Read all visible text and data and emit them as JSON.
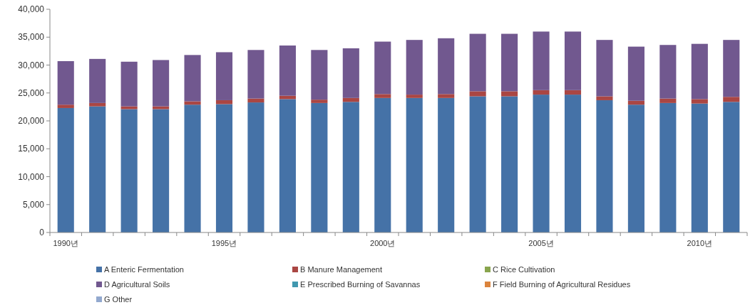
{
  "chart_data": {
    "type": "bar",
    "stacked": true,
    "categories": [
      "1990년",
      null,
      null,
      null,
      null,
      "1995년",
      null,
      null,
      null,
      null,
      "2000년",
      null,
      null,
      null,
      null,
      "2005년",
      null,
      null,
      null,
      null,
      "2010년",
      null
    ],
    "series": [
      {
        "name": "A Enteric Fermentation",
        "color": "#4572a7",
        "values": [
          22300,
          22600,
          22100,
          22100,
          22900,
          23000,
          23300,
          23900,
          23200,
          23400,
          24100,
          24100,
          24100,
          24400,
          24400,
          24700,
          24700,
          23700,
          22900,
          23200,
          23100,
          23400
        ]
      },
      {
        "name": "B Manure Management",
        "color": "#aa4643",
        "values": [
          600,
          600,
          500,
          500,
          600,
          700,
          700,
          600,
          600,
          700,
          700,
          600,
          700,
          900,
          900,
          800,
          800,
          700,
          700,
          800,
          800,
          900
        ]
      },
      {
        "name": "C Rice Cultivation",
        "color": "#89a54e",
        "values": [
          0,
          0,
          0,
          0,
          0,
          0,
          0,
          0,
          0,
          0,
          0,
          0,
          0,
          0,
          0,
          0,
          0,
          0,
          0,
          0,
          0,
          0
        ]
      },
      {
        "name": "D Agricultural Soils",
        "color": "#71588f",
        "values": [
          7800,
          7900,
          8000,
          8300,
          8300,
          8600,
          8700,
          9000,
          8900,
          8900,
          9400,
          9800,
          10000,
          10300,
          10300,
          10500,
          10500,
          10100,
          9700,
          9600,
          9900,
          10200
        ]
      },
      {
        "name": "E Prescribed Burning of Savannas",
        "color": "#4198af",
        "values": [
          0,
          0,
          0,
          0,
          0,
          0,
          0,
          0,
          0,
          0,
          0,
          0,
          0,
          0,
          0,
          0,
          0,
          0,
          0,
          0,
          0,
          0
        ]
      },
      {
        "name": "F Field Burning of Agricultural Residues",
        "color": "#db843d",
        "values": [
          0,
          0,
          0,
          0,
          0,
          0,
          0,
          0,
          0,
          0,
          0,
          0,
          0,
          0,
          0,
          0,
          0,
          0,
          0,
          0,
          0,
          0
        ]
      },
      {
        "name": "G Other",
        "color": "#93a9cf",
        "values": [
          0,
          0,
          0,
          0,
          0,
          0,
          0,
          0,
          0,
          0,
          0,
          0,
          0,
          0,
          0,
          0,
          0,
          0,
          0,
          0,
          0,
          0
        ]
      }
    ],
    "ylim": [
      0,
      40000
    ],
    "yticks": [
      0,
      {
        "value": 5000,
        "label": "5,000"
      },
      {
        "value": 10000,
        "label": "10,000"
      },
      {
        "value": 15000,
        "label": "15,000"
      },
      {
        "value": 20000,
        "label": "20,000"
      },
      {
        "value": 25000,
        "label": "25,000"
      },
      {
        "value": 30000,
        "label": "30,000"
      },
      {
        "value": 35000,
        "label": "35,000"
      },
      {
        "value": 40000,
        "label": "40,000"
      }
    ],
    "grid": false,
    "legend": "bottom"
  }
}
